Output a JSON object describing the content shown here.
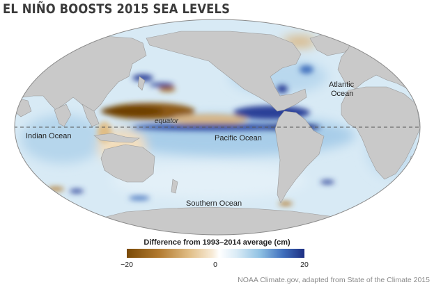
{
  "title": "EL NIÑO BOOSTS 2015 SEA LEVELS",
  "labels": {
    "indian_ocean": "Indian Ocean",
    "pacific_ocean": "Pacific Ocean",
    "atlantic_ocean_1": "Atlantic",
    "atlantic_ocean_2": "Ocean",
    "southern_ocean": "Southern Ocean",
    "equator": "equator"
  },
  "legend": {
    "title": "Difference from 1993–2014 average (cm)",
    "ticks": [
      {
        "label": "−20",
        "value": -20
      },
      {
        "label": "0",
        "value": 0
      },
      {
        "label": "20",
        "value": 20
      }
    ],
    "range": [
      -20,
      20
    ],
    "colors": {
      "negative": "#7a4a07",
      "zero": "#ffffff",
      "positive": "#1d2f82"
    }
  },
  "colors": {
    "land": "#c9c9c9",
    "ocean_base": "#d8eaf5"
  },
  "credit": "NOAA Climate.gov, adapted from State of the Climate 2015"
}
